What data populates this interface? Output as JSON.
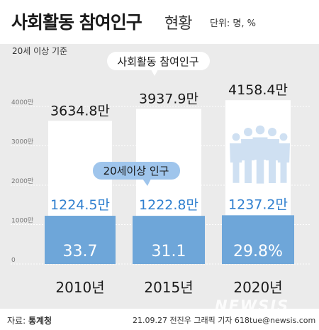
{
  "header": {
    "title_main": "사회활동 참여인구",
    "title_sub": "현황",
    "unit": "단위: 명, %"
  },
  "chart_data": {
    "type": "bar",
    "subtitle": "20세 이상 기준",
    "categories": [
      "2010년",
      "2015년",
      "2020년"
    ],
    "series": [
      {
        "name": "20세이상 인구",
        "values": [
          1224.5,
          1222.8,
          1237.2
        ],
        "labels": [
          "1224.5만",
          "1222.8만",
          "1237.2만"
        ],
        "color": "#6ea6d9"
      },
      {
        "name": "사회활동 참여인구",
        "values": [
          3634.8,
          3937.9,
          4158.4
        ],
        "labels": [
          "3634.8만",
          "3937.9만",
          "4158.4만"
        ],
        "color": "#ffffff"
      }
    ],
    "participation_rate": {
      "values": [
        33.7,
        31.1,
        29.8
      ],
      "labels": [
        "33.7",
        "31.1",
        "29.8%"
      ]
    },
    "yticks": [
      0,
      1000,
      2000,
      3000,
      4000
    ],
    "ytick_labels": [
      "0",
      "1000만",
      "2000만",
      "3000만",
      "4000만"
    ],
    "ylim": [
      0,
      4400
    ],
    "grid": true,
    "callouts": [
      "사회활동 참여인구",
      "20세이상 인구"
    ]
  },
  "footer": {
    "source_label": "자료:",
    "source_value": "통계청",
    "credit": "21.09.27 전진우 그래픽 기자 618tue@newsis.com"
  },
  "watermark": "NEWSIS",
  "colors": {
    "panel": "#ebebeb",
    "bar_blue": "#6ea6d9",
    "bar_white": "#ffffff",
    "number_blue": "#2f7fcf",
    "callout_blue": "#9fc5ec"
  }
}
